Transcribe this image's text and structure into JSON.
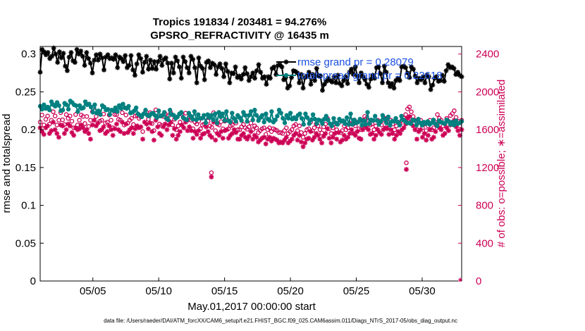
{
  "chart_data": {
    "type": "line",
    "title_line1": "Tropics 191834 / 203481 = 94.276%",
    "title_line2": "GPSRO_REFRACTIVITY @ 16435 m",
    "xlabel": "May.01,2017 00:00:00 start",
    "ylabel_left": "rmse and totalspread",
    "ylabel_right": "# of obs: o=possible; ∗=assimilated",
    "xlim": [
      1,
      33
    ],
    "ylim_left": [
      0,
      0.31
    ],
    "ylim_right": [
      0,
      2480
    ],
    "x_ticks": [
      {
        "value": 5,
        "label": "05/05"
      },
      {
        "value": 10,
        "label": "05/10"
      },
      {
        "value": 15,
        "label": "05/15"
      },
      {
        "value": 20,
        "label": "05/20"
      },
      {
        "value": 25,
        "label": "05/25"
      },
      {
        "value": 30,
        "label": "05/30"
      }
    ],
    "y_ticks_left": [
      {
        "value": 0,
        "label": "0"
      },
      {
        "value": 0.05,
        "label": "0.05"
      },
      {
        "value": 0.1,
        "label": "0.1"
      },
      {
        "value": 0.15,
        "label": "0.15"
      },
      {
        "value": 0.2,
        "label": "0.2"
      },
      {
        "value": 0.25,
        "label": "0.25"
      },
      {
        "value": 0.3,
        "label": "0.3"
      }
    ],
    "y_ticks_right": [
      {
        "value": 0,
        "label": "0"
      },
      {
        "value": 400,
        "label": "400"
      },
      {
        "value": 800,
        "label": "800"
      },
      {
        "value": 1200,
        "label": "1200"
      },
      {
        "value": 1600,
        "label": "1600"
      },
      {
        "value": 2000,
        "label": "2000"
      },
      {
        "value": 2400,
        "label": "2400"
      }
    ],
    "legend": [
      {
        "label": "rmse    grand pr = 0.28079",
        "color": "#000000"
      },
      {
        "label": "totalspread grand pr = 0.22618",
        "color": "#008080"
      }
    ],
    "series": [
      {
        "name": "rmse",
        "axis": "left",
        "color": "#000000",
        "marker": "star",
        "values": [
          0.276,
          0.306,
          0.303,
          0.299,
          0.302,
          0.294,
          0.297,
          0.308,
          0.3,
          0.289,
          0.303,
          0.295,
          0.301,
          0.284,
          0.278,
          0.296,
          0.302,
          0.291,
          0.289,
          0.306,
          0.3,
          0.304,
          0.297,
          0.285,
          0.302,
          0.294,
          0.288,
          0.275,
          0.292,
          0.299,
          0.292,
          0.3,
          0.295,
          0.279,
          0.296,
          0.299,
          0.294,
          0.295,
          0.293,
          0.299,
          0.282,
          0.296,
          0.294,
          0.29,
          0.298,
          0.282,
          0.285,
          0.298,
          0.279,
          0.272,
          0.287,
          0.299,
          0.294,
          0.276,
          0.289,
          0.297,
          0.28,
          0.292,
          0.281,
          0.29,
          0.28,
          0.29,
          0.297,
          0.285,
          0.293,
          0.295,
          0.288,
          0.267,
          0.288,
          0.275,
          0.296,
          0.291,
          0.283,
          0.268,
          0.296,
          0.29,
          0.282,
          0.275,
          0.297,
          0.293,
          0.282,
          0.262,
          0.295,
          0.284,
          0.281,
          0.266,
          0.289,
          0.291,
          0.282,
          0.288,
          0.286,
          0.273,
          0.283,
          0.287,
          0.281,
          0.27,
          0.287,
          0.277,
          0.262,
          0.275,
          0.274,
          0.283,
          0.269,
          0.271,
          0.267,
          0.273,
          0.282,
          0.274,
          0.265,
          0.27,
          0.275,
          0.268,
          0.278,
          0.286,
          0.276,
          0.268,
          0.27,
          0.26,
          0.27,
          0.268,
          0.281,
          0.283,
          0.273,
          0.285,
          0.286,
          0.283,
          0.266,
          0.269,
          0.255,
          0.258,
          0.269,
          0.278,
          0.277,
          0.275,
          0.262,
          0.273,
          0.255,
          0.269,
          0.271,
          0.276,
          0.26,
          0.273,
          0.265,
          0.281,
          0.271,
          0.271,
          0.252,
          0.26,
          0.264,
          0.268,
          0.265,
          0.263,
          0.27,
          0.262,
          0.272,
          0.261,
          0.258,
          0.265,
          0.27,
          0.261,
          0.276,
          0.28,
          0.273,
          0.283,
          0.271,
          0.262,
          0.275,
          0.27,
          0.266,
          0.26,
          0.256,
          0.267,
          0.272,
          0.268,
          0.282,
          0.283,
          0.274,
          0.262,
          0.284,
          0.276,
          0.262,
          0.257,
          0.261,
          0.255,
          0.265,
          0.268,
          0.265,
          0.283,
          0.284,
          0.282,
          0.275,
          0.269,
          0.283,
          0.28,
          0.271,
          0.262,
          0.268,
          0.266,
          0.27,
          0.262,
          0.272,
          0.27,
          0.253,
          0.259,
          0.268,
          0.27,
          0.264,
          0.265,
          0.272,
          0.264,
          0.278,
          0.286,
          0.282,
          0.283,
          0.281,
          0.273,
          0.276,
          0.272,
          0.27
        ]
      },
      {
        "name": "totalspread",
        "axis": "left",
        "color": "#008080",
        "marker": "dot",
        "values": [
          0.231,
          0.227,
          0.233,
          0.228,
          0.23,
          0.226,
          0.237,
          0.233,
          0.231,
          0.236,
          0.232,
          0.225,
          0.226,
          0.235,
          0.233,
          0.227,
          0.238,
          0.236,
          0.233,
          0.232,
          0.224,
          0.232,
          0.228,
          0.229,
          0.237,
          0.233,
          0.234,
          0.23,
          0.223,
          0.233,
          0.222,
          0.225,
          0.22,
          0.232,
          0.23,
          0.226,
          0.227,
          0.22,
          0.226,
          0.225,
          0.229,
          0.224,
          0.232,
          0.228,
          0.234,
          0.229,
          0.228,
          0.231,
          0.222,
          0.223,
          0.225,
          0.229,
          0.221,
          0.219,
          0.217,
          0.221,
          0.226,
          0.219,
          0.218,
          0.221,
          0.222,
          0.219,
          0.216,
          0.225,
          0.218,
          0.219,
          0.223,
          0.215,
          0.213,
          0.226,
          0.22,
          0.219,
          0.215,
          0.217,
          0.221,
          0.223,
          0.216,
          0.214,
          0.213,
          0.222,
          0.218,
          0.214,
          0.224,
          0.213,
          0.22,
          0.215,
          0.215,
          0.219,
          0.209,
          0.22,
          0.216,
          0.219,
          0.213,
          0.221,
          0.209,
          0.223,
          0.217,
          0.221,
          0.212,
          0.224,
          0.212,
          0.21,
          0.222,
          0.215,
          0.211,
          0.219,
          0.216,
          0.212,
          0.223,
          0.219,
          0.211,
          0.219,
          0.224,
          0.213,
          0.226,
          0.219,
          0.212,
          0.216,
          0.219,
          0.21,
          0.221,
          0.214,
          0.212,
          0.224,
          0.21,
          0.213,
          0.218,
          0.226,
          0.222,
          0.215,
          0.209,
          0.219,
          0.215,
          0.222,
          0.214,
          0.216,
          0.214,
          0.219,
          0.221,
          0.215,
          0.207,
          0.221,
          0.216,
          0.208,
          0.213,
          0.22,
          0.214,
          0.208,
          0.213,
          0.212,
          0.208,
          0.214,
          0.218,
          0.213,
          0.208,
          0.205,
          0.215,
          0.209,
          0.207,
          0.214,
          0.211,
          0.212,
          0.208,
          0.216,
          0.207,
          0.221,
          0.207,
          0.213,
          0.209,
          0.21,
          0.214,
          0.206,
          0.212,
          0.207,
          0.223,
          0.208,
          0.213,
          0.212,
          0.218,
          0.212,
          0.207,
          0.211,
          0.219,
          0.214,
          0.209,
          0.217,
          0.206,
          0.211,
          0.211,
          0.215,
          0.21,
          0.206,
          0.218,
          0.213,
          0.211,
          0.209,
          0.209,
          0.208,
          0.213,
          0.212,
          0.206,
          0.214,
          0.209,
          0.206,
          0.21,
          0.208,
          0.211,
          0.207,
          0.209,
          0.213,
          0.208,
          0.205,
          0.212,
          0.21,
          0.209,
          0.208,
          0.213,
          0.211,
          0.207,
          0.21,
          0.206,
          0.212,
          0.208,
          0.209,
          0.211
        ]
      },
      {
        "name": "possible",
        "axis": "right",
        "color": "#cc0055",
        "marker": "circle",
        "values": [
          1680,
          1755,
          1650,
          1710,
          1745,
          1660,
          1700,
          1790,
          1745,
          1650,
          1700,
          1780,
          1705,
          1655,
          1760,
          1720,
          1745,
          1690,
          1620,
          1760,
          1650,
          1700,
          1755,
          1740,
          1665,
          1740,
          1635,
          1700,
          1790,
          1800,
          1740,
          1780,
          1690,
          1700,
          1765,
          1670,
          1680,
          1755,
          1700,
          1620,
          1760,
          1760,
          1710,
          1700,
          1780,
          1650,
          1755,
          1670,
          1700,
          1720,
          1655,
          1745,
          1750,
          1720,
          1735,
          1580,
          1775,
          1785,
          1710,
          1780,
          1665,
          1590,
          1810,
          1740,
          1660,
          1645,
          1740,
          1770,
          1710,
          1750,
          1780,
          1650,
          1710,
          1600,
          1640,
          1680,
          1760,
          1720,
          1775,
          1700,
          1740,
          1700,
          1610,
          1680,
          1660,
          1690,
          1610,
          1650,
          1660,
          1730,
          1690,
          1640,
          1625,
          1780,
          1590,
          1660,
          1650,
          1685,
          1610,
          1690,
          1700,
          1610,
          1640,
          1650,
          1690,
          1670,
          1600,
          1600,
          1630,
          1655,
          1620,
          1605,
          1630,
          1670,
          1600,
          1640,
          1620,
          1570,
          1590,
          1610,
          1620,
          1550,
          1600,
          1620,
          1580,
          1610,
          1600,
          1590,
          1570,
          1570,
          1560,
          1590,
          1620,
          1560,
          1580,
          1600,
          1640,
          1655,
          1590,
          1640,
          1570,
          1520,
          1560,
          1600,
          1610,
          1680,
          1590,
          1620,
          1660,
          1640,
          1600,
          1565,
          1630,
          1660,
          1720,
          1610,
          1560,
          1620,
          1660,
          1600,
          1670,
          1570,
          1590,
          1640,
          1600,
          1620,
          1660,
          1700,
          1660,
          1640,
          1680,
          1610,
          1600,
          1700,
          1740,
          1720,
          1700,
          1650,
          1660,
          1600,
          1640,
          1700,
          1670,
          1650,
          1700,
          1720,
          1710,
          1650,
          1700,
          1660,
          1600,
          1640,
          1680,
          1660,
          1700,
          1720,
          1760,
          1820,
          1840,
          1790,
          1740,
          1700,
          1600,
          1680,
          1700,
          1620,
          1660,
          1590,
          1640,
          1700,
          1600,
          1620,
          1680,
          1760,
          1720,
          1700,
          1640,
          1660,
          1720,
          1690,
          1750,
          1770,
          1800,
          1730,
          1690,
          1640,
          1700
        ]
      },
      {
        "name": "assimilated",
        "axis": "right",
        "color": "#cc0055",
        "marker": "asterisk",
        "values": [
          1620,
          1580,
          1550,
          1620,
          1640,
          1560,
          1590,
          1680,
          1600,
          1560,
          1520,
          1650,
          1640,
          1560,
          1600,
          1660,
          1640,
          1570,
          1540,
          1620,
          1600,
          1610,
          1650,
          1620,
          1580,
          1600,
          1560,
          1500,
          1650,
          1700,
          1640,
          1670,
          1590,
          1600,
          1630,
          1560,
          1580,
          1640,
          1600,
          1540,
          1610,
          1660,
          1600,
          1580,
          1680,
          1560,
          1660,
          1570,
          1600,
          1620,
          1560,
          1610,
          1640,
          1620,
          1630,
          1500,
          1680,
          1660,
          1610,
          1670,
          1580,
          1490,
          1700,
          1630,
          1560,
          1540,
          1630,
          1660,
          1600,
          1650,
          1680,
          1540,
          1610,
          1500,
          1540,
          1580,
          1650,
          1620,
          1680,
          1590,
          1630,
          1590,
          1510,
          1580,
          1550,
          1590,
          1510,
          1550,
          1560,
          1630,
          1580,
          1540,
          1520,
          1680,
          1490,
          1560,
          1540,
          1580,
          1510,
          1590,
          1600,
          1510,
          1540,
          1560,
          1600,
          1570,
          1500,
          1500,
          1540,
          1560,
          1520,
          1500,
          1530,
          1580,
          1500,
          1540,
          1520,
          1470,
          1490,
          1510,
          1520,
          1450,
          1500,
          1520,
          1480,
          1510,
          1500,
          1490,
          1460,
          1470,
          1460,
          1490,
          1520,
          1460,
          1480,
          1500,
          1540,
          1560,
          1490,
          1540,
          1470,
          1420,
          1460,
          1500,
          1510,
          1580,
          1490,
          1520,
          1560,
          1540,
          1500,
          1460,
          1530,
          1560,
          1610,
          1510,
          1460,
          1520,
          1560,
          1500,
          1570,
          1470,
          1490,
          1540,
          1500,
          1520,
          1560,
          1600,
          1560,
          1540,
          1580,
          1510,
          1500,
          1600,
          1640,
          1620,
          1600,
          1550,
          1560,
          1500,
          1540,
          1600,
          1570,
          1550,
          1600,
          1620,
          1610,
          1550,
          1600,
          1560,
          1500,
          1540,
          1580,
          1560,
          1600,
          1620,
          1660,
          1720,
          1740,
          1690,
          1640,
          1600,
          1500,
          1580,
          1600,
          1520,
          1560,
          1490,
          1540,
          1600,
          1500,
          1520,
          1580,
          1660,
          1620,
          1600,
          1540,
          1560,
          1620,
          1590,
          1650,
          1670,
          1700,
          1630,
          1590,
          1540,
          1600
        ]
      }
    ],
    "outlier_points": [
      {
        "x": 14.0,
        "possible": 1145,
        "assimilated": 1100
      },
      {
        "x": 28.8,
        "possible": 1250,
        "assimilated": 1180
      }
    ]
  },
  "footer": "data file: /Users/raeder/DAI/ATM_forcXX/CAM6_setup/f.e21.FHIST_BGC.f09_025.CAM6assim.011/Diags_NTrS_2017-05/obs_diag_output.nc"
}
